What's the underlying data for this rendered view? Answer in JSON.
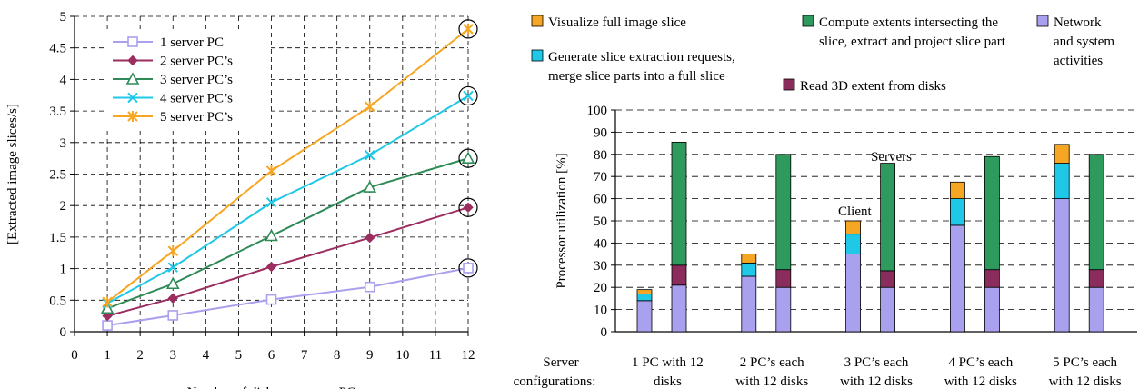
{
  "chart_data": [
    {
      "type": "line",
      "title": "",
      "xlabel": "Number of disks per server PC",
      "ylabel": "[Extracted image slices/s]",
      "xlim": [
        0,
        12
      ],
      "ylim": [
        0,
        5
      ],
      "x_ticks": [
        "0",
        "1",
        "2",
        "3",
        "4",
        "5",
        "6",
        "7",
        "8",
        "9",
        "10",
        "11",
        "12"
      ],
      "y_ticks": [
        "0",
        "0.5",
        "1",
        "1.5",
        "2",
        "2.5",
        "3",
        "3.5",
        "4",
        "4.5",
        "5"
      ],
      "grid": true,
      "legend_position": "top-left",
      "x": [
        1,
        3,
        6,
        9,
        12
      ],
      "series": [
        {
          "name": "1 server PC",
          "color": "#a9a0ee",
          "marker": "square",
          "values": [
            0.1,
            0.26,
            0.51,
            0.71,
            1.01
          ]
        },
        {
          "name": "2 server PC’s",
          "color": "#9b2d5f",
          "marker": "diamond",
          "values": [
            0.25,
            0.53,
            1.03,
            1.49,
            1.97
          ]
        },
        {
          "name": "3 server PC’s",
          "color": "#2e8b57",
          "marker": "triangle",
          "values": [
            0.37,
            0.76,
            1.52,
            2.29,
            2.75
          ]
        },
        {
          "name": "4 server PC’s",
          "color": "#1ec8e6",
          "marker": "x",
          "values": [
            0.45,
            1.02,
            2.05,
            2.8,
            3.74
          ]
        },
        {
          "name": "5 server PC’s",
          "color": "#f5a623",
          "marker": "star",
          "values": [
            0.47,
            1.28,
            2.55,
            3.57,
            4.8
          ]
        }
      ]
    },
    {
      "type": "bar",
      "stacked": true,
      "title": "",
      "xlabel": "",
      "ylabel": "Processor utilization [%]",
      "ylim": [
        0,
        100
      ],
      "y_ticks": [
        "0",
        "10",
        "20",
        "30",
        "40",
        "50",
        "60",
        "70",
        "80",
        "90",
        "100"
      ],
      "grid": true,
      "legend_position": "top",
      "legend": [
        {
          "key": "visualize",
          "color": "#f5a623",
          "lines": [
            "Visualize full image slice"
          ]
        },
        {
          "key": "generate",
          "color": "#1ec8e6",
          "lines": [
            "Generate slice extraction requests,",
            "merge slice parts into a full slice"
          ]
        },
        {
          "key": "compute",
          "color": "#2e9a5e",
          "lines": [
            "Compute extents intersecting the",
            "slice, extract and project slice part"
          ]
        },
        {
          "key": "read",
          "color": "#8b2d5c",
          "lines": [
            "Read 3D extent from disks"
          ]
        },
        {
          "key": "network",
          "color": "#a9a0ee",
          "lines": [
            "Network",
            "and system",
            "activities"
          ]
        }
      ],
      "category_axis_title": [
        "Server",
        "configurations:"
      ],
      "categories": [
        {
          "lines": [
            "1 PC with 12",
            "disks"
          ]
        },
        {
          "lines": [
            "2 PC’s each",
            "with 12 disks"
          ]
        },
        {
          "lines": [
            "3 PC’s each",
            "with 12 disks"
          ]
        },
        {
          "lines": [
            "4 PC’s each",
            "with 12 disks"
          ]
        },
        {
          "lines": [
            "5 PC’s each",
            "with 12 disks"
          ]
        }
      ],
      "annotations": {
        "client": "Client",
        "servers": "Servers"
      },
      "bars": [
        {
          "group": 0,
          "role": "client",
          "stack": {
            "network": 14,
            "read": 0,
            "compute": 0,
            "generate": 3,
            "visualize": 2
          }
        },
        {
          "group": 0,
          "role": "server",
          "stack": {
            "network": 21,
            "read": 9,
            "compute": 55.5,
            "generate": 0,
            "visualize": 0
          }
        },
        {
          "group": 1,
          "role": "client",
          "stack": {
            "network": 25,
            "read": 0,
            "compute": 0,
            "generate": 6,
            "visualize": 4
          }
        },
        {
          "group": 1,
          "role": "server",
          "stack": {
            "network": 20,
            "read": 8,
            "compute": 52,
            "generate": 0,
            "visualize": 0
          }
        },
        {
          "group": 2,
          "role": "client",
          "stack": {
            "network": 35,
            "read": 0,
            "compute": 0,
            "generate": 9,
            "visualize": 6
          }
        },
        {
          "group": 2,
          "role": "server",
          "stack": {
            "network": 20,
            "read": 7.5,
            "compute": 48.5,
            "generate": 0,
            "visualize": 0
          }
        },
        {
          "group": 3,
          "role": "client",
          "stack": {
            "network": 48,
            "read": 0,
            "compute": 0,
            "generate": 12,
            "visualize": 7.5
          }
        },
        {
          "group": 3,
          "role": "server",
          "stack": {
            "network": 20,
            "read": 8,
            "compute": 51,
            "generate": 0,
            "visualize": 0
          }
        },
        {
          "group": 4,
          "role": "client",
          "stack": {
            "network": 60,
            "read": 0,
            "compute": 0,
            "generate": 16,
            "visualize": 8.5
          }
        },
        {
          "group": 4,
          "role": "server",
          "stack": {
            "network": 20,
            "read": 8,
            "compute": 52,
            "generate": 0,
            "visualize": 0
          }
        }
      ]
    }
  ]
}
